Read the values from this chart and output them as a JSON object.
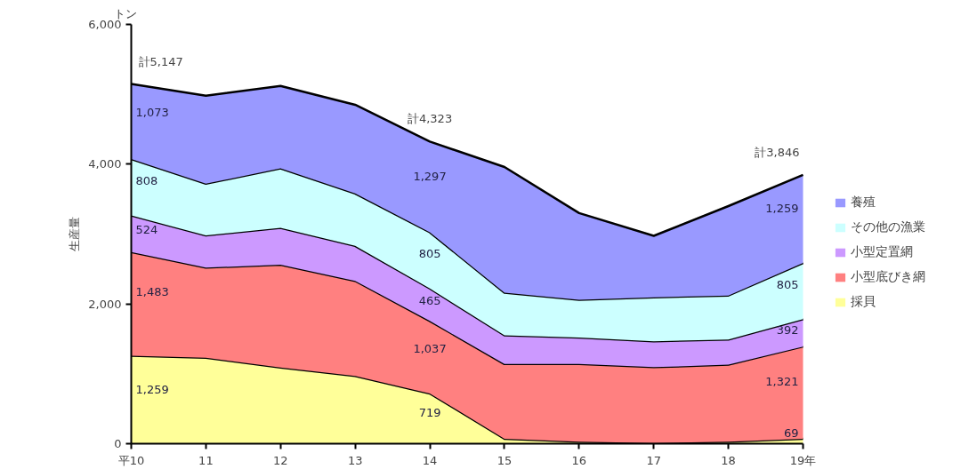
{
  "chart_data": {
    "type": "area",
    "stacked": true,
    "ylabel": "生産量",
    "categories": [
      "平10",
      "11",
      "12",
      "13",
      "14",
      "15",
      "16",
      "17",
      "18",
      "19年"
    ],
    "series": [
      {
        "name": "採貝",
        "color": "#ffff99",
        "values": [
          1259,
          1230,
          1090,
          970,
          719,
          70,
          30,
          10,
          30,
          69
        ],
        "value_labels": [
          "1,259",
          null,
          null,
          null,
          "719",
          null,
          null,
          null,
          null,
          "69"
        ]
      },
      {
        "name": "小型底びき網",
        "color": "#ff8080",
        "values": [
          1483,
          1290,
          1470,
          1360,
          1037,
          1070,
          1110,
          1085,
          1100,
          1321
        ],
        "value_labels": [
          "1,483",
          null,
          null,
          null,
          "1,037",
          null,
          null,
          null,
          null,
          "1,321"
        ]
      },
      {
        "name": "小型定置網",
        "color": "#cc99ff",
        "values": [
          524,
          460,
          530,
          500,
          465,
          410,
          380,
          370,
          360,
          392
        ],
        "value_labels": [
          "524",
          null,
          null,
          null,
          "465",
          null,
          null,
          null,
          null,
          "392"
        ]
      },
      {
        "name": "その他の漁業",
        "color": "#ccffff",
        "values": [
          808,
          740,
          850,
          750,
          805,
          610,
          540,
          630,
          630,
          805
        ],
        "value_labels": [
          "808",
          null,
          null,
          null,
          "805",
          null,
          null,
          null,
          null,
          "805"
        ]
      },
      {
        "name": "養殖",
        "color": "#9999ff",
        "values": [
          1073,
          1260,
          1180,
          1270,
          1297,
          1800,
          1240,
          880,
          1280,
          1259
        ],
        "value_labels": [
          "1,073",
          null,
          null,
          null,
          "1,297",
          null,
          null,
          null,
          null,
          "1,259"
        ]
      }
    ],
    "totals": [
      "計5,147",
      null,
      null,
      null,
      "計4,323",
      null,
      null,
      null,
      null,
      "計3,846"
    ],
    "annotations": [
      "トン"
    ],
    "ylim": [
      0,
      6000
    ],
    "yticks": [
      {
        "value": 0,
        "label": "0"
      },
      {
        "value": 2000,
        "label": "2,000"
      },
      {
        "value": 4000,
        "label": "4,000"
      },
      {
        "value": 6000,
        "label": "6,000"
      }
    ],
    "grid": false,
    "legend": "right"
  }
}
